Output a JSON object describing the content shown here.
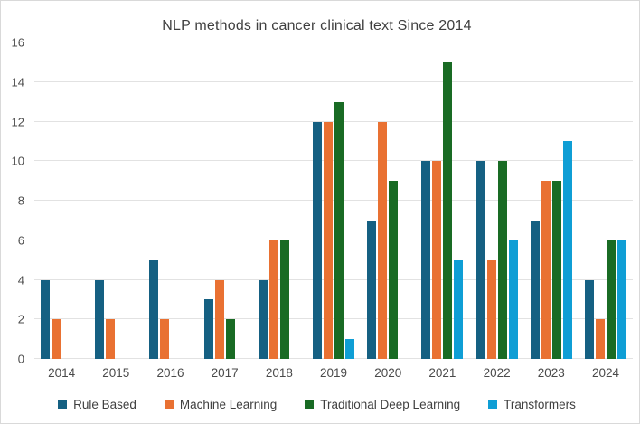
{
  "title": "NLP methods in cancer clinical text Since 2014",
  "chart_data": {
    "type": "bar",
    "title": "NLP methods in cancer clinical text Since 2014",
    "xlabel": "",
    "ylabel": "",
    "categories": [
      "2014",
      "2015",
      "2016",
      "2017",
      "2018",
      "2019",
      "2020",
      "2021",
      "2022",
      "2023",
      "2024"
    ],
    "series": [
      {
        "name": "Rule Based",
        "color": "#156082",
        "values": [
          4,
          4,
          5,
          3,
          4,
          12,
          7,
          10,
          10,
          7,
          4
        ]
      },
      {
        "name": "Machine Learning",
        "color": "#E97132",
        "values": [
          2,
          2,
          2,
          4,
          6,
          12,
          12,
          10,
          5,
          9,
          2
        ]
      },
      {
        "name": "Traditional Deep Learning",
        "color": "#196B24",
        "values": [
          0,
          0,
          0,
          2,
          6,
          13,
          9,
          15,
          10,
          9,
          6
        ]
      },
      {
        "name": "Transformers",
        "color": "#0F9ED5",
        "values": [
          0,
          0,
          0,
          0,
          0,
          1,
          0,
          5,
          6,
          11,
          6
        ]
      }
    ],
    "ylim": [
      0,
      16
    ],
    "yticks": [
      0,
      2,
      4,
      6,
      8,
      10,
      12,
      14,
      16
    ],
    "grid": true,
    "legend_position": "bottom"
  }
}
